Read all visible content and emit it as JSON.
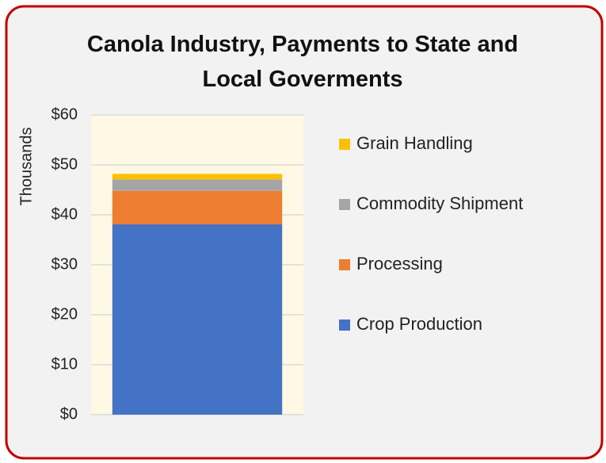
{
  "chart_data": {
    "type": "stacked_bar",
    "title": "Canola Industry, Payments to State and Local Goverments",
    "y_axis_label": "Thousands",
    "categories": [
      null
    ],
    "series": [
      {
        "name": "Crop Production",
        "color": "#4472c4",
        "values": [
          38.1
        ]
      },
      {
        "name": "Processing",
        "color": "#ed7d31",
        "values": [
          6.7
        ]
      },
      {
        "name": "Commodity Shipment",
        "color": "#a5a5a5",
        "values": [
          2.3
        ]
      },
      {
        "name": "Grain Handling",
        "color": "#ffc000",
        "values": [
          1.1
        ]
      }
    ],
    "ylim": [
      0,
      60
    ],
    "yticks": [
      {
        "value": 0,
        "label": "$0"
      },
      {
        "value": 10,
        "label": "$10"
      },
      {
        "value": 20,
        "label": "$20"
      },
      {
        "value": 30,
        "label": "$30"
      },
      {
        "value": 40,
        "label": "$40"
      },
      {
        "value": 50,
        "label": "$50"
      },
      {
        "value": 60,
        "label": "$60"
      }
    ],
    "grid": true,
    "legend": "right"
  }
}
